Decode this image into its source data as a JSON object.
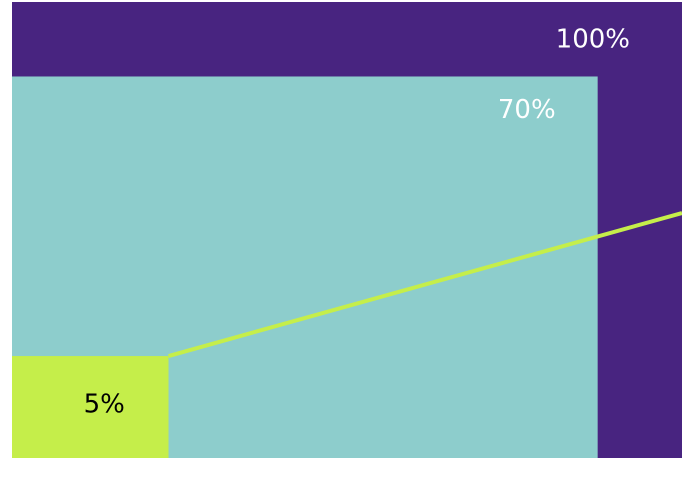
{
  "chart_data": {
    "type": "nested-area",
    "values": [
      100,
      70,
      5
    ],
    "value_labels": [
      "100%",
      "70%",
      "5%"
    ],
    "colors": [
      "#482480",
      "#8dcdcc",
      "#c5ee4a"
    ],
    "label_colors": [
      "#ffffff",
      "#ffffff",
      "#000000"
    ]
  }
}
